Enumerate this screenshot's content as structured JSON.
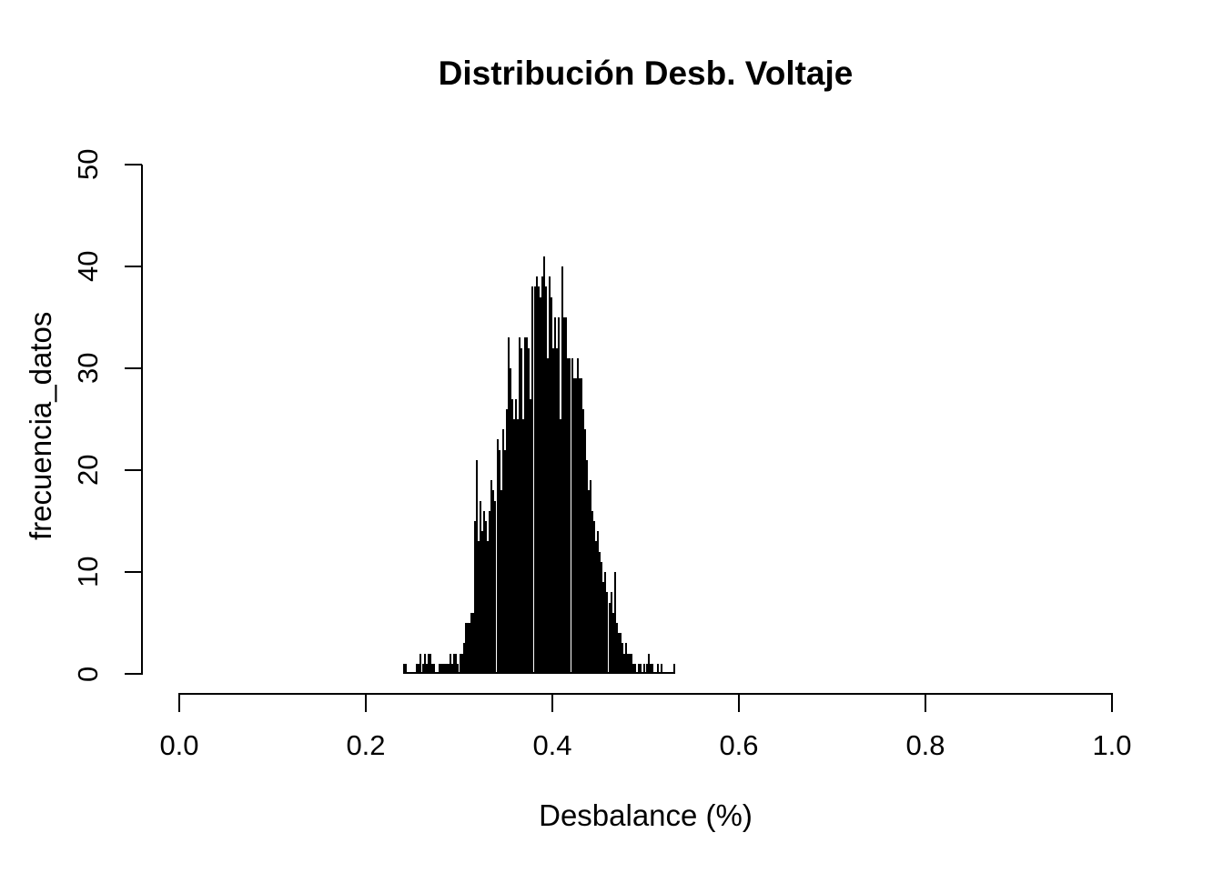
{
  "title": "Distribución Desb. Voltaje",
  "x_axis": {
    "label": "Desbalance (%)",
    "tick_labels": [
      "0.0",
      "0.2",
      "0.4",
      "0.6",
      "0.8",
      "1.0"
    ],
    "tick_values": [
      0.0,
      0.2,
      0.4,
      0.6,
      0.8,
      1.0
    ]
  },
  "y_axis": {
    "label": "frecuencia_datos",
    "tick_labels": [
      "0",
      "10",
      "20",
      "30",
      "40",
      "50"
    ],
    "tick_values": [
      0,
      10,
      20,
      30,
      40,
      50
    ]
  },
  "colors": {
    "background": "#FFFFFF",
    "bar_fill": "#000000",
    "axis": "#000000",
    "text": "#000000"
  },
  "chart_data": {
    "type": "bar",
    "subtype": "histogram",
    "title": "Distribución Desb. Voltaje",
    "xlabel": "Desbalance (%)",
    "ylabel": "frecuencia_datos",
    "xlim": [
      0.0,
      1.0
    ],
    "ylim": [
      0,
      50
    ],
    "grid": false,
    "legend": false,
    "bin_start": 0.24,
    "bin_width": 0.002,
    "data_range": [
      0.24,
      0.532
    ],
    "peak_count": 41,
    "peak_x": 0.39,
    "counts": [
      1,
      1,
      0,
      0,
      0,
      0,
      0,
      1,
      1,
      2,
      1,
      2,
      1,
      2,
      2,
      1,
      1,
      0,
      0,
      1,
      1,
      1,
      1,
      1,
      1,
      2,
      1,
      2,
      2,
      1,
      2,
      2,
      3,
      5,
      5,
      5,
      6,
      6,
      15,
      21,
      13,
      17,
      14,
      16,
      15,
      13,
      16,
      19,
      18,
      17,
      23,
      22,
      18,
      24,
      22,
      26,
      33,
      30,
      27,
      25,
      27,
      25,
      33,
      32,
      25,
      33,
      33,
      32,
      27,
      38,
      38,
      39,
      38,
      37,
      39,
      41,
      38,
      31,
      39,
      37,
      32,
      35,
      32,
      35,
      25,
      40,
      35,
      35,
      31,
      31,
      31,
      29,
      29,
      31,
      29,
      29,
      26,
      24,
      21,
      18,
      19,
      16,
      15,
      13,
      14,
      12,
      11,
      9,
      10,
      8,
      7,
      8,
      6,
      10,
      5,
      4,
      4,
      3,
      2,
      3,
      2,
      2,
      2,
      1,
      1,
      0,
      1,
      1,
      0,
      1,
      1,
      2,
      1,
      1,
      0,
      0,
      1,
      0,
      1,
      0,
      0,
      0,
      0,
      0,
      0,
      1
    ]
  }
}
